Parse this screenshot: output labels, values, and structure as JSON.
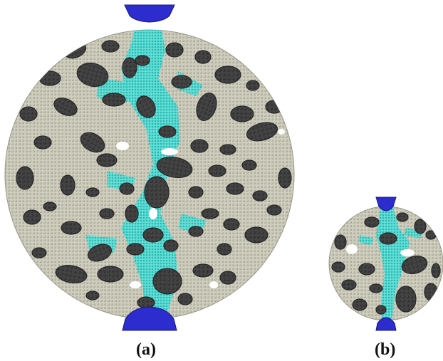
{
  "captions": {
    "a": "(a)",
    "b": "(b)"
  },
  "colors": {
    "matrix": "#c9c7b7",
    "aggregate": "#3f3f40",
    "aggregate_edge": "#262627",
    "crack": "#3fd6cf",
    "void": "#ffffff",
    "platen": "#2c2ccf",
    "platen_edge": "#14148a"
  }
}
